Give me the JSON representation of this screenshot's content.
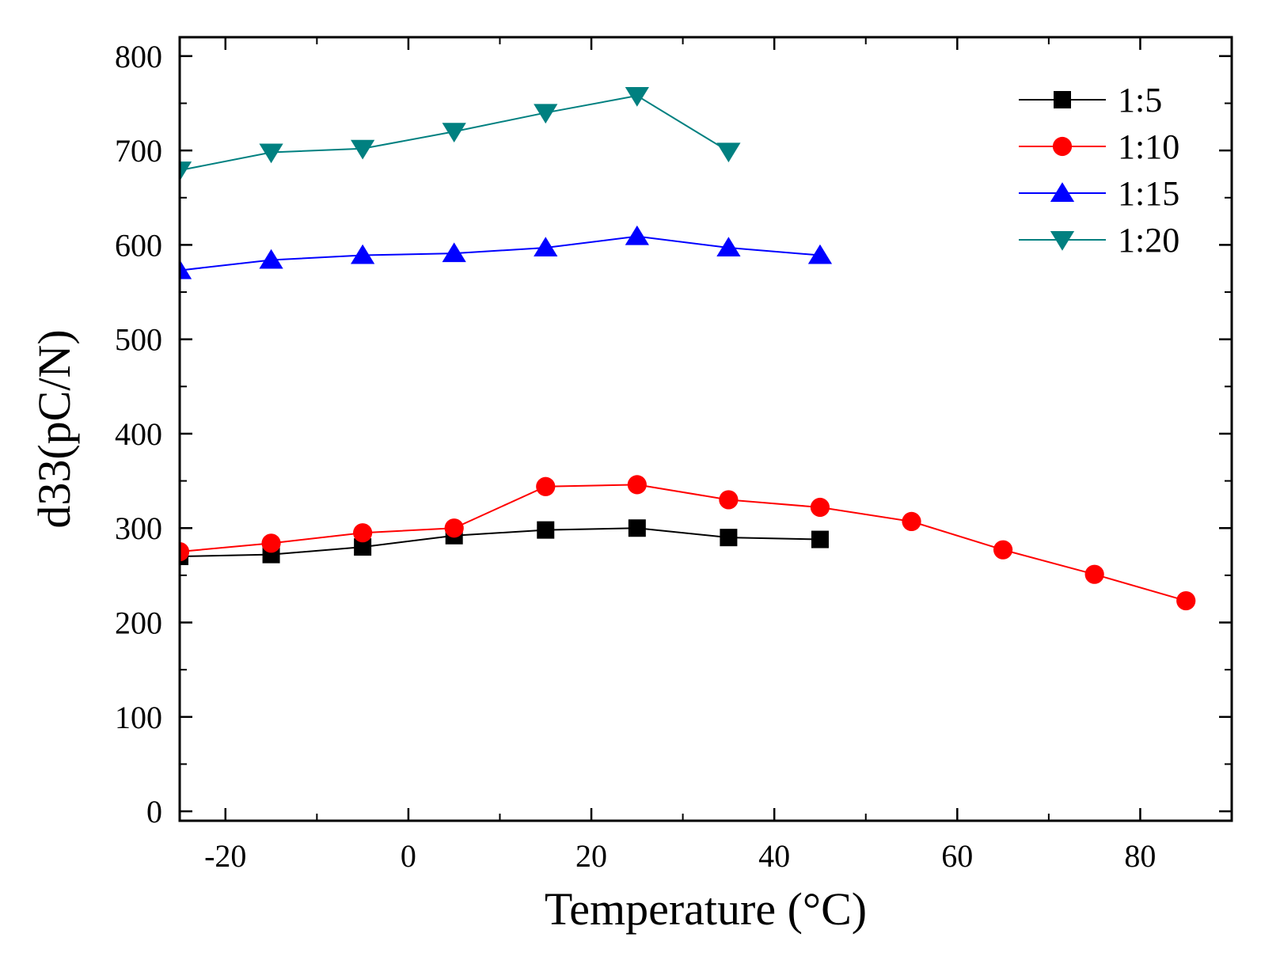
{
  "chart_data": {
    "type": "line",
    "title": "",
    "xlabel": "Temperature (°C)",
    "ylabel": "d33(pC/N)",
    "xlim": [
      -25,
      90
    ],
    "ylim": [
      -10,
      820
    ],
    "xticks": [
      -20,
      0,
      20,
      40,
      60,
      80
    ],
    "yticks": [
      0,
      100,
      200,
      300,
      400,
      500,
      600,
      700,
      800
    ],
    "xtick_labels": [
      "-20",
      "0",
      "20",
      "40",
      "60",
      "80"
    ],
    "ytick_labels": [
      "0",
      "100",
      "200",
      "300",
      "400",
      "500",
      "600",
      "700",
      "800"
    ],
    "x_minor_step": 10,
    "y_minor_step": 50,
    "grid": false,
    "legend_position": "top-right",
    "series": [
      {
        "name": "1:5",
        "color": "#000000",
        "marker": "square",
        "x": [
          -25,
          -15,
          -5,
          5,
          15,
          25,
          35,
          45
        ],
        "values": [
          270,
          272,
          280,
          292,
          298,
          300,
          290,
          288
        ]
      },
      {
        "name": "1:10",
        "color": "#ff0000",
        "marker": "circle",
        "x": [
          -25,
          -15,
          -5,
          5,
          15,
          25,
          35,
          45,
          55,
          65,
          75,
          85
        ],
        "values": [
          275,
          284,
          295,
          300,
          344,
          346,
          330,
          322,
          307,
          277,
          251,
          223
        ]
      },
      {
        "name": "1:15",
        "color": "#0000ff",
        "marker": "triangle-up",
        "x": [
          -25,
          -15,
          -5,
          5,
          15,
          25,
          35,
          45
        ],
        "values": [
          573,
          584,
          589,
          591,
          597,
          609,
          597,
          589
        ]
      },
      {
        "name": "1:20",
        "color": "#008080",
        "marker": "triangle-down",
        "x": [
          -25,
          -15,
          -5,
          5,
          15,
          25,
          35
        ],
        "values": [
          679,
          698,
          702,
          720,
          740,
          758,
          699
        ]
      }
    ]
  }
}
